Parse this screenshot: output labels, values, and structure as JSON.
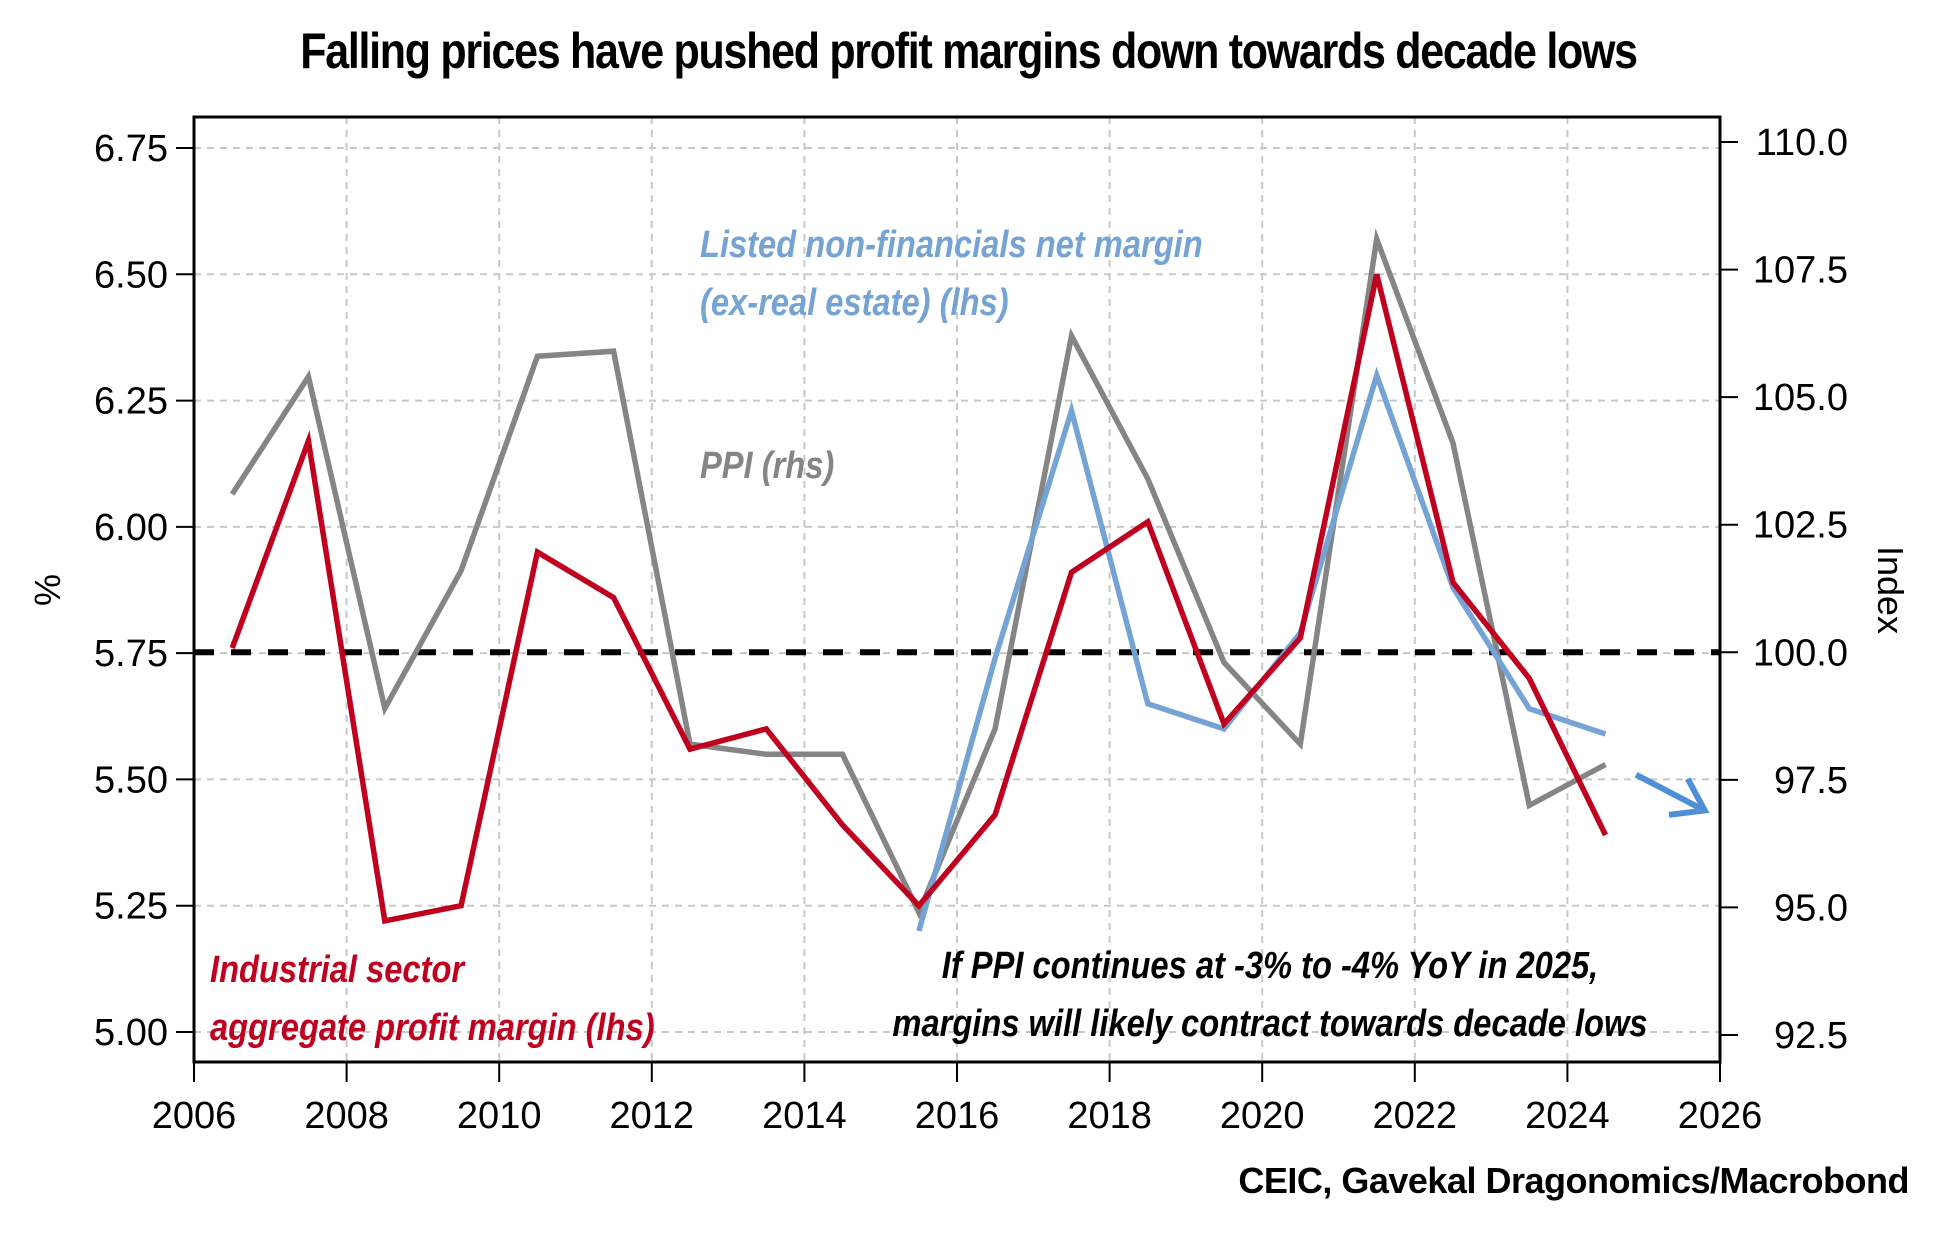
{
  "chart_data": {
    "type": "line",
    "title": "Falling prices have pushed profit margins down towards decade lows",
    "source": "CEIC, Gavekal Dragonomics/Macrobond",
    "xlabel": "",
    "ylabel_left": "%",
    "ylabel_right": "Index",
    "xlim": [
      2006,
      2026
    ],
    "ylim_left": [
      4.97,
      6.78
    ],
    "ylim_right": [
      91.8,
      110.4
    ],
    "x_ticks": [
      2006,
      2008,
      2010,
      2012,
      2014,
      2016,
      2018,
      2020,
      2022,
      2024,
      2026
    ],
    "x_tick_labels": [
      "2006",
      "2008",
      "2010",
      "2012",
      "2014",
      "2016",
      "2018",
      "2020",
      "2022",
      "2024",
      "2026"
    ],
    "y_left_ticks": [
      5.0,
      5.25,
      5.5,
      5.75,
      6.0,
      6.25,
      6.5,
      6.75
    ],
    "y_left_tick_labels": [
      "5.00",
      "5.25",
      "5.50",
      "5.75",
      "6.00",
      "6.25",
      "6.50",
      "6.75"
    ],
    "y_right_ticks": [
      92.5,
      95.0,
      97.5,
      100.0,
      102.5,
      105.0,
      107.5,
      110.0
    ],
    "y_right_tick_labels": [
      "92.5",
      "95.0",
      "97.5",
      "100.0",
      "102.5",
      "105.0",
      "107.5",
      "110.0"
    ],
    "grid": true,
    "reference_line": {
      "axis": "right",
      "value": 100.0,
      "style": "dashed",
      "color": "#000000"
    },
    "series": [
      {
        "name": "Industrial sector aggregate profit margin (lhs)",
        "axis": "left",
        "color": "#c0001f",
        "x": [
          2006.5,
          2007.5,
          2008.5,
          2009.5,
          2010.5,
          2011.5,
          2012.5,
          2013.5,
          2014.5,
          2015.5,
          2016.5,
          2017.5,
          2018.5,
          2019.5,
          2020.5,
          2021.5,
          2022.5,
          2023.5,
          2024.5
        ],
        "values": [
          5.76,
          6.17,
          5.22,
          5.25,
          5.95,
          5.86,
          5.56,
          5.6,
          5.41,
          5.25,
          5.43,
          5.91,
          6.01,
          5.61,
          5.78,
          6.5,
          5.89,
          5.7,
          5.39
        ]
      },
      {
        "name": "PPI (rhs)",
        "axis": "right",
        "color": "#858585",
        "x": [
          2006.5,
          2007.5,
          2008.5,
          2009.5,
          2010.5,
          2011.5,
          2012.5,
          2013.5,
          2014.5,
          2015.5,
          2016.5,
          2017.5,
          2018.5,
          2019.5,
          2020.5,
          2021.5,
          2022.5,
          2023.5,
          2024.5
        ],
        "values": [
          103.1,
          105.4,
          98.9,
          101.6,
          105.8,
          105.9,
          98.2,
          98.0,
          98.0,
          94.9,
          98.5,
          106.2,
          103.4,
          99.8,
          98.2,
          108.1,
          104.1,
          97.0,
          97.8
        ]
      },
      {
        "name": "Listed non-financials net margin (ex-real estate) (lhs)",
        "axis": "left",
        "color": "#74a3d4",
        "x": [
          2015.5,
          2016.5,
          2017.5,
          2018.5,
          2019.5,
          2020.5,
          2021.5,
          2022.5,
          2023.5,
          2024.5
        ],
        "values": [
          5.2,
          5.74,
          6.23,
          5.65,
          5.6,
          5.79,
          6.3,
          5.88,
          5.64,
          5.59
        ]
      }
    ],
    "projection_arrow": {
      "color": "#4f8fd6",
      "from": [
        2024.9,
        97.6
      ],
      "to": [
        2025.8,
        96.9
      ]
    },
    "annotations": [
      {
        "id": "listed",
        "lines": [
          "Listed non-financials net margin",
          "(ex-real estate)  (lhs)"
        ],
        "color": "#74a3d4"
      },
      {
        "id": "ppi",
        "lines": [
          "PPI (rhs)"
        ],
        "color": "#858585"
      },
      {
        "id": "industrial",
        "lines": [
          "Industrial sector",
          "aggregate profit margin (lhs)"
        ],
        "color": "#c0001f"
      },
      {
        "id": "forecast",
        "lines": [
          "If PPI continues at -3% to -4% YoY in 2025,",
          "margins will likely contract towards decade lows"
        ],
        "color": "#000000"
      }
    ]
  }
}
